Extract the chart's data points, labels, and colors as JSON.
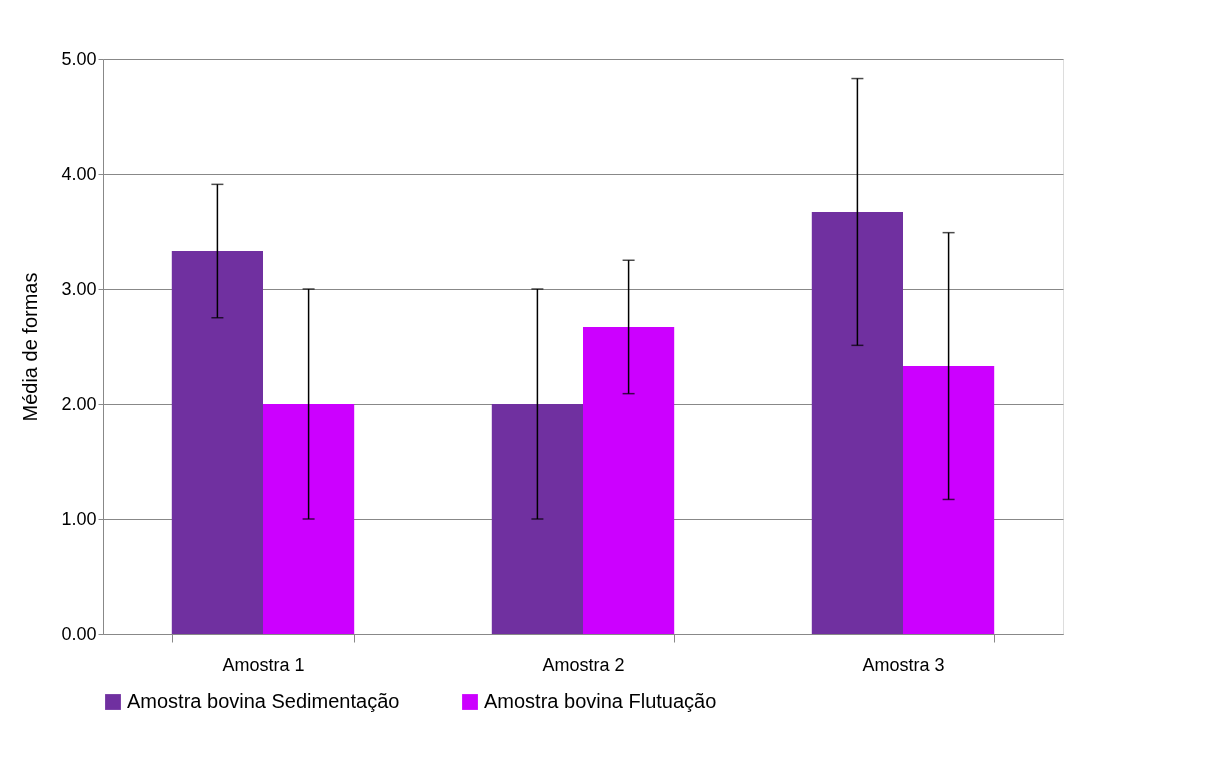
{
  "chart_data": {
    "type": "bar",
    "ylabel": "Média de formas",
    "categories": [
      "Amostra 1",
      "Amostra 2",
      "Amostra 3"
    ],
    "series": [
      {
        "name": "Amostra bovina Sedimentação",
        "color": "#7030a0",
        "values": [
          3.33,
          2.0,
          3.67
        ],
        "errors": [
          0.58,
          1.0,
          1.16
        ]
      },
      {
        "name": "Amostra bovina Flutuação",
        "color": "#cc00ff",
        "values": [
          2.0,
          2.67,
          2.33
        ],
        "errors": [
          1.0,
          0.58,
          1.16
        ]
      }
    ],
    "ylim": [
      0,
      5
    ],
    "yticks": [
      {
        "value": 0,
        "label": "0.00"
      },
      {
        "value": 1,
        "label": "1.00"
      },
      {
        "value": 2,
        "label": "2.00"
      },
      {
        "value": 3,
        "label": "3.00"
      },
      {
        "value": 4,
        "label": "4.00"
      },
      {
        "value": 5,
        "label": "5.00"
      }
    ],
    "grid": "y",
    "legend": "bottom"
  }
}
